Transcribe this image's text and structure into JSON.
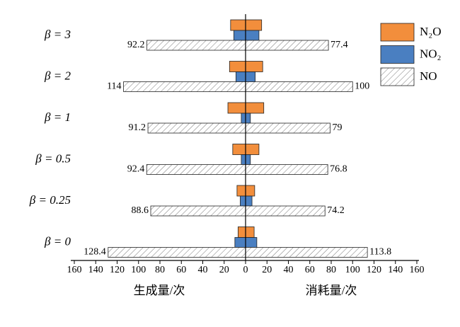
{
  "chart_data": {
    "type": "butterfly-bar",
    "categories": [
      "β = 3",
      "β = 2",
      "β = 1",
      "β = 0.5",
      "β = 0.25",
      "β = 0"
    ],
    "left_axis_label": "生成量/次",
    "right_axis_label": "消耗量/次",
    "xlim_left": [
      0,
      160
    ],
    "xticks_left": [
      160,
      140,
      120,
      100,
      80,
      60,
      40,
      20
    ],
    "xlim": [
      0,
      160
    ],
    "xticks": [
      0,
      20,
      40,
      60,
      80,
      100,
      120,
      140,
      160
    ],
    "series": [
      {
        "name": "N₂O",
        "color": "#f28e3c",
        "left_values": [
          14,
          15,
          16.5,
          12,
          8,
          7
        ],
        "right_values": [
          15,
          16,
          17,
          12.5,
          8.5,
          8
        ]
      },
      {
        "name": "NO₂",
        "color": "#4a7fc1",
        "left_values": [
          11,
          9,
          4,
          4,
          5,
          10
        ],
        "right_values": [
          12.5,
          9,
          4.5,
          4.5,
          6,
          10.5
        ]
      },
      {
        "name": "NO",
        "color": "hatch",
        "left_values": [
          92.2,
          114,
          91.2,
          92.4,
          88.6,
          128.4
        ],
        "right_values": [
          77.4,
          100,
          79,
          76.8,
          74.2,
          113.8
        ]
      }
    ]
  }
}
